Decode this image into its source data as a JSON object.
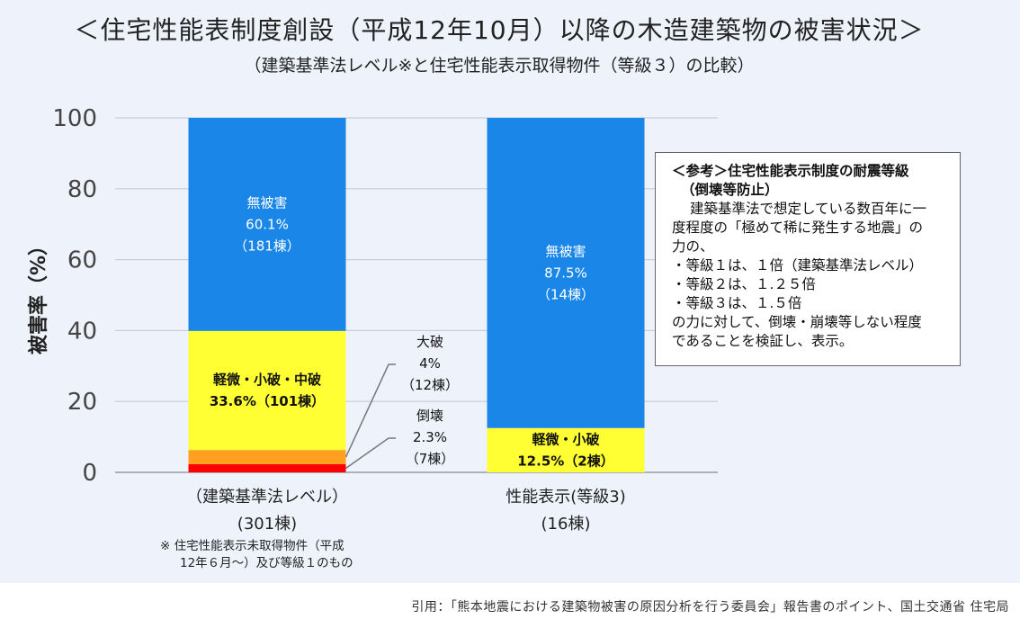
{
  "title": "＜住宅性能表制度創設（平成12年10月）以降の木造建築物の被害状況＞",
  "subtitle": "（建築基準法レベル※と住宅性能表示取得物件（等級３）の比較）",
  "chart_data": {
    "type": "bar",
    "stacked": true,
    "ylabel": "被害率（%）",
    "ylim": [
      0,
      100
    ],
    "yticks": [
      "0",
      "20",
      "40",
      "60",
      "80",
      "100"
    ],
    "grid": true,
    "categories": [
      {
        "label": "（建築基準法レベル）",
        "sublabel": "(301棟)"
      },
      {
        "label": "性能表示(等級3)",
        "sublabel": "(16棟)"
      }
    ],
    "series": [
      {
        "name": "倒壊",
        "color": "#ff0000",
        "values": [
          2.3,
          0
        ]
      },
      {
        "name": "大破",
        "color": "#ffa020",
        "values": [
          4.0,
          0
        ]
      },
      {
        "name": "軽微・小破・中破",
        "color": "#ffff33",
        "values": [
          33.6,
          12.5
        ]
      },
      {
        "name": "無被害",
        "color": "#1a86e8",
        "values": [
          60.1,
          87.5
        ]
      }
    ],
    "data_labels": [
      {
        "category": 0,
        "series": "無被害",
        "lines": [
          "無被害",
          "60.1%",
          "（181棟）"
        ],
        "text_color": "#ffffff"
      },
      {
        "category": 0,
        "series": "軽微・小破・中破",
        "lines": [
          "軽微・小破・中破",
          "33.6%（101棟）"
        ],
        "text_color": "#111111"
      },
      {
        "category": 1,
        "series": "無被害",
        "lines": [
          "無被害",
          "87.5%",
          "（14棟）"
        ],
        "text_color": "#ffffff"
      },
      {
        "category": 1,
        "series": "軽微・小破・中破",
        "lines": [
          "軽微・小破",
          "12.5%（2棟）"
        ],
        "text_color": "#111111"
      }
    ],
    "callouts": [
      {
        "category": 0,
        "series": "大破",
        "lines": [
          "大破",
          "4%",
          "（12棟）"
        ]
      },
      {
        "category": 0,
        "series": "倒壊",
        "lines": [
          "倒壊",
          "2.3%",
          "（7棟）"
        ]
      }
    ]
  },
  "reference": {
    "heading": "＜参考＞住宅性能表示制度の耐震等級",
    "heading2": "（倒壊等防止）",
    "lines": [
      "建築基準法で想定している数百年に一",
      "度程度の「極めて稀に発生する地震」の",
      "力の、",
      "・等級１は、１倍（建築基準法レベル）",
      "・等級２は、１.２５倍",
      "・等級３は、１.５倍",
      "の力に対して、倒壊・崩壊等しない程度",
      "であることを検証し、表示。"
    ]
  },
  "note": {
    "line1": "※ 住宅性能表示未取得物件（平成",
    "line2": "12年６月〜）及び等級１のもの"
  },
  "citation": "引用：「熊本地震における建築物被害の原因分析を行う委員会」報告書のポイント、国土交通省 住宅局"
}
